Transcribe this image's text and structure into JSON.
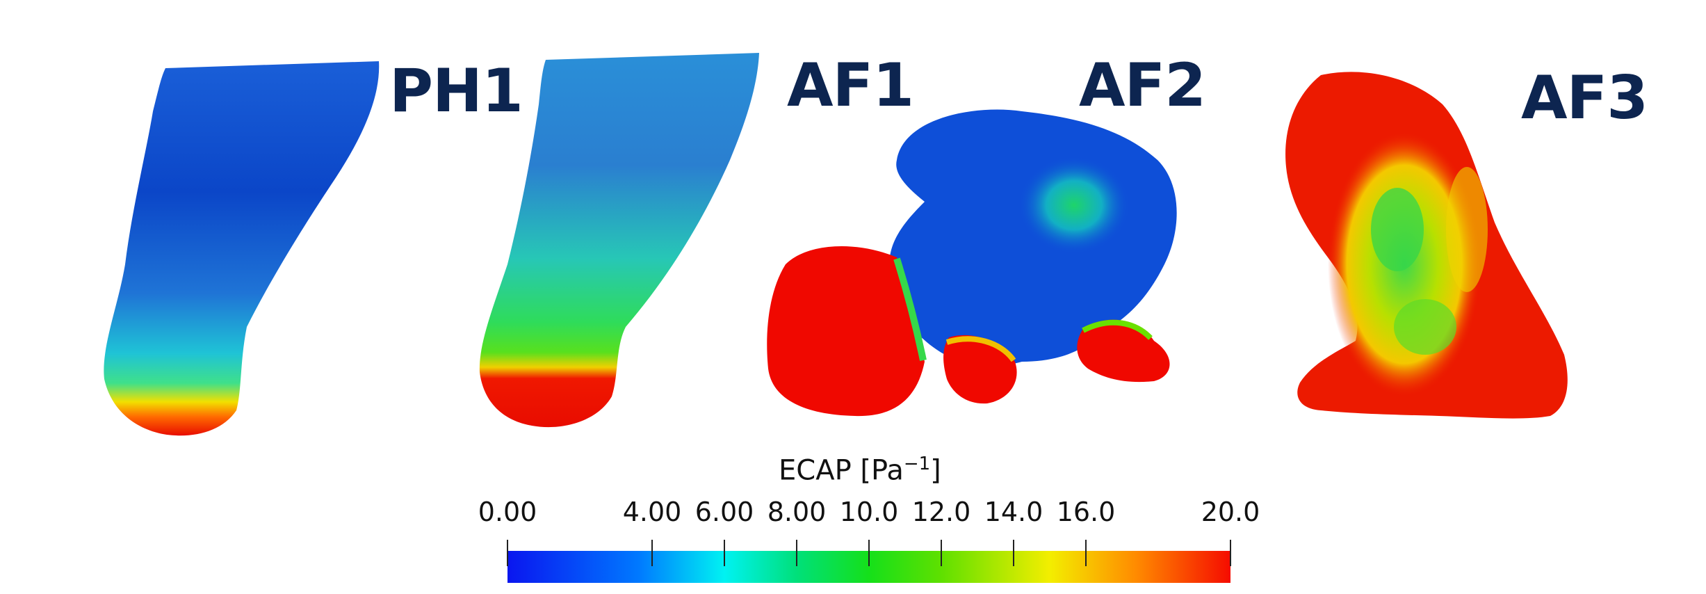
{
  "cases": [
    {
      "label": "PH1"
    },
    {
      "label": "AF1"
    },
    {
      "label": "AF2"
    },
    {
      "label": "AF3"
    }
  ],
  "colorbar": {
    "title": "ECAP [Pa",
    "title_sup": "−1",
    "title_end": "]",
    "min": 0,
    "max": 20,
    "ticks": [
      {
        "value": 0,
        "label": "0.00"
      },
      {
        "value": 4,
        "label": "4.00"
      },
      {
        "value": 6,
        "label": "6.00"
      },
      {
        "value": 8,
        "label": "8.00"
      },
      {
        "value": 10,
        "label": "10.0"
      },
      {
        "value": 12,
        "label": "12.0"
      },
      {
        "value": 14,
        "label": "14.0"
      },
      {
        "value": 16,
        "label": "16.0"
      },
      {
        "value": 20,
        "label": "20.0"
      }
    ],
    "colors": [
      "#0a16ef",
      "#0078ff",
      "#00f2f2",
      "#15e01a",
      "#f3ee00",
      "#ff8a00",
      "#f50c00"
    ]
  },
  "label_color": "#0d2550"
}
